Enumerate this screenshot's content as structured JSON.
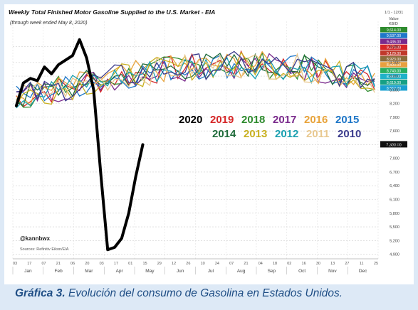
{
  "chart_data": {
    "type": "line",
    "title": "Weekly Total Finished Motor Gasoline Supplied to the U.S. Market - EIA",
    "subtitle": "(through week ended May 8, 2020)",
    "date_range": "1/1 - 12/31",
    "value_header": [
      "Value",
      "KB/D"
    ],
    "watermark": "@kannbwx",
    "source": "Sources: Refinitiv Eikon/EIA",
    "ylim": [
      4800,
      10000
    ],
    "y_ticks": [
      {
        "value": 9450,
        "label": "9,450"
      },
      {
        "value": 9100,
        "label": "9,100"
      },
      {
        "value": 8800,
        "label": "8,800"
      },
      {
        "value": 8500,
        "label": "8,500"
      },
      {
        "value": 8200,
        "label": "8,200"
      },
      {
        "value": 7900,
        "label": "7,900"
      },
      {
        "value": 7600,
        "label": "7,600"
      },
      {
        "value": 7300,
        "label": "7,300"
      },
      {
        "value": 7000,
        "label": "7,000"
      },
      {
        "value": 6700,
        "label": "6,700"
      },
      {
        "value": 6400,
        "label": "6,400"
      },
      {
        "value": 6100,
        "label": "6,100"
      },
      {
        "value": 5800,
        "label": "5,800"
      },
      {
        "value": 5500,
        "label": "5,500"
      },
      {
        "value": 5200,
        "label": "5,200"
      },
      {
        "value": 4900,
        "label": "4,900"
      }
    ],
    "legend_values": [
      {
        "label": "9,614.00",
        "color": "#2e8b2e"
      },
      {
        "label": "9,537.00",
        "color": "#1f77c8"
      },
      {
        "label": "9,436.00",
        "color": "#7a2a8c"
      },
      {
        "label": "9,278.00",
        "color": "#d62728"
      },
      {
        "label": "9,129.00",
        "color": "#c0392b"
      },
      {
        "label": "8,923.00",
        "color": "#8c6d3c"
      },
      {
        "label": "8,893.00",
        "color": "#e8a040"
      },
      {
        "label": "8,743.00",
        "color": "#27ae60"
      },
      {
        "label": "8,680.00",
        "color": "#20b2c9"
      },
      {
        "label": "8,619.00",
        "color": "#16a085"
      },
      {
        "label": "8,552.00",
        "color": "#1aa0d0"
      }
    ],
    "last_value_label": "7,300.00",
    "months": [
      "Jan",
      "Feb",
      "Mar",
      "Apr",
      "May",
      "Jun",
      "Jul",
      "Aug",
      "Sep",
      "Oct",
      "Nov",
      "Dec"
    ],
    "week_ticks": [
      "03",
      "17",
      "07",
      "21",
      "06",
      "20",
      "03",
      "17",
      "01",
      "15",
      "29",
      "12",
      "26",
      "10",
      "24",
      "07",
      "21",
      "04",
      "18",
      "02",
      "16",
      "30",
      "13",
      "27",
      "11",
      "25"
    ],
    "year_legend": [
      {
        "name": "2020",
        "color": "#000000"
      },
      {
        "name": "2019",
        "color": "#d62728"
      },
      {
        "name": "2018",
        "color": "#2e8b2e"
      },
      {
        "name": "2017",
        "color": "#7a2a8c"
      },
      {
        "name": "2016",
        "color": "#e8a33a"
      },
      {
        "name": "2015",
        "color": "#1f77c8"
      },
      {
        "name": "2014",
        "color": "#1f6b3a"
      },
      {
        "name": "2013",
        "color": "#c8b020"
      },
      {
        "name": "2012",
        "color": "#1aa0b0"
      },
      {
        "name": "2011",
        "color": "#e8c890"
      },
      {
        "name": "2010",
        "color": "#3a3a8c"
      }
    ],
    "series_2020_weeks": [
      1,
      2,
      3,
      4,
      5,
      6,
      7,
      8,
      9,
      10,
      11,
      12,
      13,
      14,
      15,
      16,
      17,
      18,
      19
    ],
    "series_2020_values": [
      8150,
      8650,
      8750,
      8700,
      9000,
      8850,
      9050,
      9150,
      9250,
      9600,
      9200,
      8500,
      6700,
      5000,
      5050,
      5250,
      5800,
      6600,
      7300
    ]
  },
  "caption": {
    "bold": "Gráfica 3.",
    "text": " Evolución del consumo de Gasolina en Estados Unidos."
  }
}
